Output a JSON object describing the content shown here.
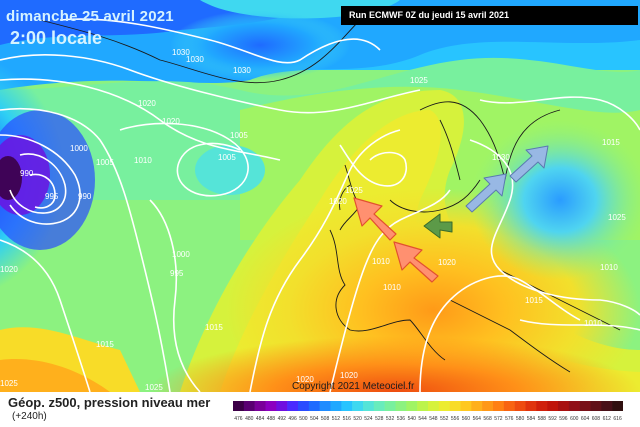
{
  "header": {
    "date": "dimanche 25 avril 2021",
    "time": "2:00 locale",
    "run": "Run ECMWF 0Z du jeudi 15 avril 2021"
  },
  "footer": {
    "title": "Géop. z500, pression niveau mer",
    "subtitle": "(+240h)",
    "copyright": "Copyright 2021 Meteociel.fr"
  },
  "legend": {
    "values": [
      "476",
      "480",
      "484",
      "488",
      "492",
      "496",
      "500",
      "504",
      "508",
      "512",
      "516",
      "520",
      "524",
      "528",
      "532",
      "536",
      "540",
      "544",
      "548",
      "552",
      "556",
      "560",
      "564",
      "568",
      "572",
      "576",
      "580",
      "584",
      "588",
      "592",
      "596",
      "600",
      "604",
      "608",
      "612",
      "616"
    ],
    "colors": [
      "#3c0047",
      "#5a0072",
      "#7a009a",
      "#8c00c0",
      "#6f0fe0",
      "#4a2bff",
      "#2a4cff",
      "#1f6bff",
      "#1f8cff",
      "#20a8ff",
      "#28c4ff",
      "#3fd8f0",
      "#55e4d8",
      "#68ecbc",
      "#78f09e",
      "#8cf280",
      "#a0f464",
      "#bcf44c",
      "#d6f23c",
      "#ecec30",
      "#f8dc28",
      "#ffc820",
      "#ffb01c",
      "#ff9818",
      "#ff8014",
      "#f86412",
      "#ee4c10",
      "#e0340e",
      "#d0200c",
      "#c0140a",
      "#a81010",
      "#901018",
      "#781018",
      "#601018",
      "#481018",
      "#301010"
    ]
  },
  "isobar_labels": [
    "1030",
    "1030",
    "1030",
    "1025",
    "1020",
    "1020",
    "1005",
    "1010",
    "1000",
    "1005",
    "1005",
    "990",
    "995",
    "990",
    "1000",
    "995",
    "1015",
    "1020",
    "1015",
    "1025",
    "1025",
    "1020",
    "1015",
    "1030",
    "1020",
    "1010",
    "1010",
    "1025",
    "1010",
    "1010",
    "1015",
    "1020",
    "1025",
    "1020"
  ],
  "arrows": {
    "red": "#ff9070",
    "green": "#5c9a48",
    "blue": "#98b8e4"
  }
}
